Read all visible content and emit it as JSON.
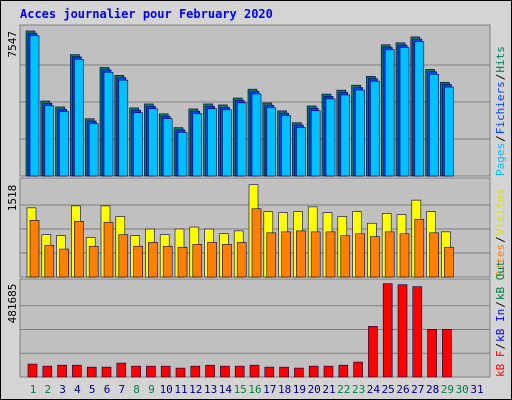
{
  "chart_data": {
    "type": "bar",
    "title": "Acces journalier pour February 2020",
    "separator": "/",
    "categories": [
      "1",
      "2",
      "3",
      "4",
      "5",
      "6",
      "7",
      "8",
      "9",
      "10",
      "11",
      "12",
      "13",
      "14",
      "15",
      "16",
      "17",
      "18",
      "19",
      "20",
      "21",
      "22",
      "23",
      "24",
      "25",
      "26",
      "27",
      "28",
      "29",
      "30",
      "31"
    ],
    "category_colors": [
      "#008040",
      "#008040",
      "#000080",
      "#000080",
      "#000080",
      "#000080",
      "#000080",
      "#008040",
      "#008040",
      "#000080",
      "#000080",
      "#000080",
      "#000080",
      "#000080",
      "#008040",
      "#008040",
      "#000080",
      "#000080",
      "#000080",
      "#000080",
      "#000080",
      "#008040",
      "#008040",
      "#000080",
      "#000080",
      "#000080",
      "#000080",
      "#000080",
      "#008040",
      "#008040",
      "#000080"
    ],
    "panels": [
      {
        "ylim": [
          0,
          7700
        ],
        "yticks": [
          7547
        ],
        "legend": [
          {
            "label": "Pages",
            "color": "#00c0ff"
          },
          {
            "label": "Fichiers",
            "color": "#0040ff"
          },
          {
            "label": "Hits",
            "color": "#00805c"
          }
        ],
        "series": [
          {
            "color": "#00805c",
            "values": [
              7547,
              3902,
              3594,
              6315,
              2978,
              5647,
              5237,
              3542,
              3748,
              3234,
              2516,
              3491,
              3748,
              3696,
              4056,
              4518,
              3799,
              3388,
              2772,
              3645,
              4261,
              4467,
              4723,
              5185,
              6828,
              6931,
              7239,
              5545,
              4877,
              null,
              null
            ]
          },
          {
            "color": "#0040ff",
            "values": [
              7427,
              3782,
              3474,
              6195,
              2858,
              5527,
              5117,
              3422,
              3628,
              3114,
              2396,
              3371,
              3628,
              3576,
              3936,
              4398,
              3679,
              3268,
              2652,
              3525,
              4141,
              4347,
              4603,
              5065,
              6708,
              6811,
              7119,
              5425,
              4757,
              null,
              null
            ]
          },
          {
            "color": "#00c0ff",
            "values": [
              7297,
              3652,
              3344,
              6065,
              2728,
              5397,
              4987,
              3292,
              3498,
              2984,
              2266,
              3241,
              3498,
              3446,
              3806,
              4268,
              3549,
              3138,
              2522,
              3395,
              4011,
              4217,
              4473,
              4935,
              6578,
              6681,
              6989,
              5295,
              4627,
              null,
              null
            ]
          }
        ]
      },
      {
        "ylim": [
          0,
          1580
        ],
        "yticks": [
          1518
        ],
        "legend": [
          {
            "label": "Sites",
            "color": "#ff8000"
          },
          {
            "label": "Visites",
            "color": "#e0e000"
          }
        ],
        "series": [
          {
            "color": "#ffff00",
            "values": [
              1138,
              696,
              680,
              1170,
              648,
              1170,
              996,
              680,
              790,
              696,
              790,
              822,
              790,
              712,
              759,
              1518,
              1075,
              1059,
              1075,
              1154,
              1059,
              996,
              1075,
              885,
              1044,
              1028,
              1265,
              1075,
              743,
              null,
              null
            ]
          },
          {
            "color": "#ff8000",
            "values": [
              933,
              522,
              459,
              917,
              506,
              901,
              696,
              506,
              569,
              506,
              490,
              538,
              569,
              538,
              569,
              1123,
              727,
              743,
              759,
              743,
              743,
              680,
              712,
              664,
              743,
              712,
              949,
              727,
              490,
              null,
              null
            ]
          }
        ]
      },
      {
        "ylim": [
          0,
          490000
        ],
        "yticks": [
          481685
        ],
        "legend": [
          {
            "label": "kB F",
            "color": "#ff0000"
          },
          {
            "label": "kB In",
            "color": "#0000ff"
          },
          {
            "label": "kB Out",
            "color": "#008040"
          }
        ],
        "series": [
          {
            "color": "#ff0000",
            "values": [
              66600,
              56000,
              61000,
              61000,
              51000,
              51000,
              71700,
              56000,
              56000,
              56000,
              46000,
              56000,
              61000,
              56000,
              56000,
              61000,
              51000,
              51000,
              46000,
              56000,
              56000,
              61000,
              77000,
              261000,
              481685,
              476000,
              466000,
              246000,
              246000,
              null,
              null
            ]
          }
        ]
      }
    ]
  }
}
